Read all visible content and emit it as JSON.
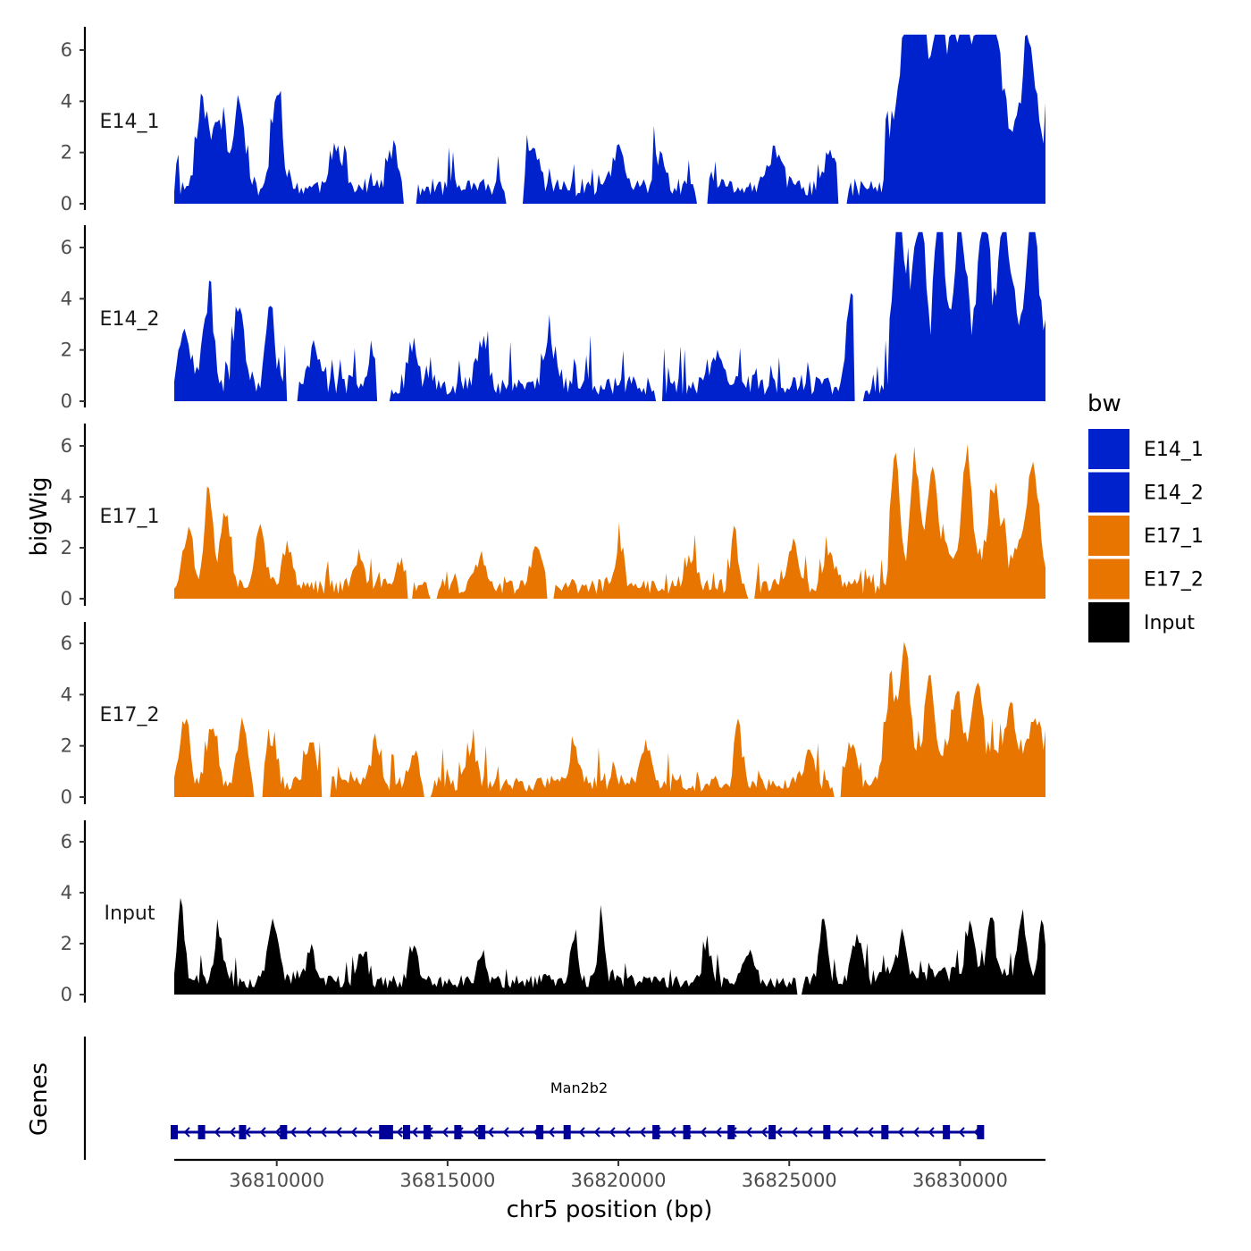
{
  "chart_data": {
    "type": "area",
    "title": "",
    "ylabel": "bigWig",
    "xlabel": "chr5 position (bp)",
    "gene_track_label": "Genes",
    "xlim": [
      36807000,
      36832500
    ],
    "ylim": [
      0,
      6.8
    ],
    "x_ticks": [
      36810000,
      36815000,
      36820000,
      36825000,
      36830000
    ],
    "x_tick_labels": [
      "36810000",
      "36815000",
      "36820000",
      "36825000",
      "36830000"
    ],
    "y_ticks": [
      0,
      2,
      4,
      6
    ],
    "y_tick_labels": [
      "0",
      "2",
      "4",
      "6"
    ],
    "legend": {
      "title": "bw",
      "placement": "right",
      "entries": [
        {
          "name": "E14_1",
          "color": "#0022CC"
        },
        {
          "name": "E14_2",
          "color": "#0022CC"
        },
        {
          "name": "E17_1",
          "color": "#E87500"
        },
        {
          "name": "E17_2",
          "color": "#E87500"
        },
        {
          "name": "Input",
          "color": "#000000"
        }
      ]
    },
    "series": [
      {
        "name": "E14_1",
        "color": "#0022CC",
        "baseline": 0.8,
        "noise": 0.8,
        "seed": 11,
        "peaks": [
          [
            36807800,
            3.3,
            150
          ],
          [
            36808900,
            3.5,
            160
          ],
          [
            36810000,
            3.6,
            150
          ],
          [
            36808300,
            2.6,
            200
          ],
          [
            36811700,
            1.5,
            180
          ],
          [
            36813400,
            1.5,
            150
          ],
          [
            36817500,
            1.5,
            180
          ],
          [
            36820000,
            1.5,
            160
          ],
          [
            36821200,
            1.2,
            150
          ],
          [
            36824600,
            1.5,
            180
          ],
          [
            36826200,
            1.5,
            140
          ],
          [
            36828500,
            5.5,
            200
          ],
          [
            36828900,
            5.5,
            120
          ],
          [
            36829300,
            4.7,
            150
          ],
          [
            36830200,
            3.6,
            160
          ],
          [
            36830600,
            4.7,
            150
          ],
          [
            36831000,
            4.0,
            180
          ],
          [
            36832000,
            3.4,
            150
          ],
          [
            36829800,
            3.8,
            200
          ]
        ],
        "rise": [
          36827800,
          3.0
        ],
        "gaps": [
          [
            36813700,
            36814100
          ],
          [
            36816700,
            36817200
          ],
          [
            36822300,
            36822600
          ],
          [
            36826400,
            36826700
          ]
        ]
      },
      {
        "name": "E14_2",
        "color": "#0022CC",
        "baseline": 0.7,
        "noise": 0.9,
        "seed": 23,
        "peaks": [
          [
            36807300,
            2.4,
            150
          ],
          [
            36808000,
            3.2,
            150
          ],
          [
            36808900,
            3.1,
            150
          ],
          [
            36809800,
            3.5,
            120
          ],
          [
            36811100,
            1.8,
            130
          ],
          [
            36812800,
            1.5,
            130
          ],
          [
            36814000,
            1.7,
            140
          ],
          [
            36816000,
            1.7,
            150
          ],
          [
            36818000,
            1.6,
            150
          ],
          [
            36822900,
            1.2,
            150
          ],
          [
            36826800,
            3.5,
            120
          ],
          [
            36828200,
            5.8,
            120
          ],
          [
            36829400,
            6.5,
            100
          ],
          [
            36830700,
            5.5,
            120
          ],
          [
            36831300,
            4.2,
            150
          ],
          [
            36832100,
            5.1,
            150
          ],
          [
            36828800,
            4.6,
            150
          ],
          [
            36830000,
            3.9,
            150
          ]
        ],
        "rise": [
          36827900,
          3.0
        ],
        "gaps": [
          [
            36810300,
            36810600
          ],
          [
            36812900,
            36813300
          ],
          [
            36821100,
            36821300
          ],
          [
            36826900,
            36827200
          ]
        ]
      },
      {
        "name": "E17_1",
        "color": "#E87500",
        "baseline": 0.5,
        "noise": 0.7,
        "seed": 37,
        "peaks": [
          [
            36807400,
            2.2,
            150
          ],
          [
            36808000,
            4.0,
            120
          ],
          [
            36808500,
            2.8,
            150
          ],
          [
            36809500,
            2.4,
            150
          ],
          [
            36810300,
            1.5,
            150
          ],
          [
            36812400,
            1.2,
            140
          ],
          [
            36813600,
            1.0,
            150
          ],
          [
            36816000,
            1.2,
            150
          ],
          [
            36817600,
            1.5,
            150
          ],
          [
            36820000,
            1.3,
            150
          ],
          [
            36822100,
            1.2,
            150
          ],
          [
            36823400,
            2.1,
            100
          ],
          [
            36825100,
            1.8,
            120
          ],
          [
            36826200,
            1.2,
            150
          ],
          [
            36828100,
            4.0,
            120
          ],
          [
            36828700,
            3.5,
            120
          ],
          [
            36829200,
            3.6,
            120
          ],
          [
            36830200,
            3.8,
            140
          ],
          [
            36831000,
            2.5,
            150
          ],
          [
            36832100,
            3.4,
            150
          ]
        ],
        "rise": [
          36827900,
          1.6
        ],
        "gaps": [
          [
            36813800,
            36814000
          ],
          [
            36814500,
            36814700
          ],
          [
            36817900,
            36818100
          ],
          [
            36823800,
            36824000
          ]
        ]
      },
      {
        "name": "E17_2",
        "color": "#E87500",
        "baseline": 0.6,
        "noise": 0.7,
        "seed": 53,
        "peaks": [
          [
            36807300,
            2.6,
            140
          ],
          [
            36808100,
            2.4,
            150
          ],
          [
            36809000,
            2.3,
            150
          ],
          [
            36809800,
            1.7,
            150
          ],
          [
            36811000,
            1.6,
            150
          ],
          [
            36812900,
            1.8,
            120
          ],
          [
            36814000,
            1.2,
            150
          ],
          [
            36815700,
            1.4,
            150
          ],
          [
            36818700,
            1.4,
            150
          ],
          [
            36820800,
            1.6,
            150
          ],
          [
            36823500,
            2.7,
            100
          ],
          [
            36825600,
            1.5,
            150
          ],
          [
            36826800,
            1.6,
            150
          ],
          [
            36828400,
            4.3,
            120
          ],
          [
            36829100,
            3.0,
            120
          ],
          [
            36829900,
            2.4,
            150
          ],
          [
            36830500,
            2.8,
            150
          ],
          [
            36831500,
            1.9,
            150
          ],
          [
            36832200,
            1.6,
            150
          ],
          [
            36828000,
            2.2,
            200
          ]
        ],
        "rise": [
          36827700,
          1.4
        ],
        "gaps": [
          [
            36809300,
            36809600
          ],
          [
            36811300,
            36811600
          ],
          [
            36814300,
            36814500
          ],
          [
            36826300,
            36826500
          ]
        ]
      },
      {
        "name": "Input",
        "color": "#000000",
        "baseline": 0.7,
        "noise": 0.6,
        "seed": 71,
        "peaks": [
          [
            36807200,
            3.1,
            100
          ],
          [
            36808300,
            2.0,
            120
          ],
          [
            36809900,
            2.4,
            150
          ],
          [
            36811000,
            1.4,
            120
          ],
          [
            36812500,
            1.2,
            120
          ],
          [
            36814000,
            1.4,
            120
          ],
          [
            36816000,
            1.2,
            120
          ],
          [
            36818700,
            1.5,
            120
          ],
          [
            36819500,
            2.4,
            100
          ],
          [
            36822600,
            1.4,
            120
          ],
          [
            36823800,
            1.3,
            150
          ],
          [
            36826000,
            2.3,
            120
          ],
          [
            36827000,
            1.8,
            150
          ],
          [
            36828300,
            1.5,
            120
          ],
          [
            36830300,
            2.1,
            120
          ],
          [
            36830900,
            2.3,
            100
          ],
          [
            36831800,
            1.9,
            120
          ],
          [
            36832400,
            2.2,
            100
          ]
        ],
        "rise": [
          36827400,
          0.4
        ],
        "gaps": [
          [
            36825200,
            36825400
          ]
        ]
      }
    ],
    "gene": {
      "name": "Man2b2",
      "start": 36807000,
      "end": 36830600,
      "strand": "-",
      "color": "#000099",
      "exons": [
        36807000,
        36807800,
        36809000,
        36810200,
        36813100,
        36813300,
        36813800,
        36814400,
        36815300,
        36816000,
        36817700,
        36818500,
        36821100,
        36822000,
        36823300,
        36824500,
        36826100,
        36827800,
        36829600,
        36830600
      ]
    }
  }
}
